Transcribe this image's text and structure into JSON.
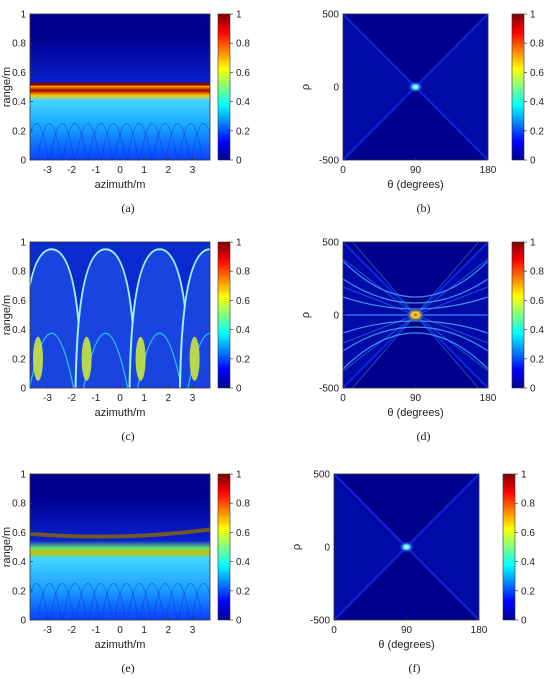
{
  "panels": [
    {
      "id": "a",
      "caption": "(a)",
      "type": "range-azimuth",
      "ylabel": "range/m",
      "xlabel": "azimuth/m",
      "xticks": [
        "-3",
        "-2",
        "-1",
        "0",
        "1",
        "2",
        "3"
      ],
      "yticks": [
        "0",
        "0.2",
        "0.4",
        "0.6",
        "0.8",
        "1"
      ],
      "cbticks": [
        "0",
        "0.2",
        "0.4",
        "0.6",
        "0.8",
        "1"
      ],
      "pattern": "band"
    },
    {
      "id": "b",
      "caption": "(b)",
      "type": "hough",
      "ylabel": "ρ",
      "xlabel": "θ (degrees)",
      "xticks": [
        "0",
        "90",
        "180"
      ],
      "yticks": [
        "-500",
        "0",
        "500"
      ],
      "cbticks": [
        "0",
        "0.2",
        "0.4",
        "0.6",
        "0.8",
        "1"
      ],
      "pattern": "point"
    },
    {
      "id": "c",
      "caption": "(c)",
      "type": "range-azimuth",
      "ylabel": "range/m",
      "xlabel": "azimuth/m",
      "xticks": [
        "-3",
        "-2",
        "-1",
        "0",
        "1",
        "2",
        "3"
      ],
      "yticks": [
        "0",
        "0.2",
        "0.4",
        "0.6",
        "0.8",
        "1"
      ],
      "cbticks": [
        "0",
        "0.2",
        "0.4",
        "0.6",
        "0.8",
        "1"
      ],
      "pattern": "arcs"
    },
    {
      "id": "d",
      "caption": "(d)",
      "type": "hough",
      "ylabel": "ρ",
      "xlabel": "θ (degrees)",
      "xticks": [
        "0",
        "90",
        "180"
      ],
      "yticks": [
        "-500",
        "0",
        "500"
      ],
      "cbticks": [
        "0",
        "0.2",
        "0.4",
        "0.6",
        "0.8",
        "1"
      ],
      "pattern": "star"
    },
    {
      "id": "e",
      "caption": "(e)",
      "type": "range-azimuth",
      "ylabel": "range/m",
      "xlabel": "azimuth/m",
      "xticks": [
        "-3",
        "-2",
        "-1",
        "0",
        "1",
        "2",
        "3"
      ],
      "yticks": [
        "0",
        "0.2",
        "0.4",
        "0.6",
        "0.8",
        "1"
      ],
      "cbticks": [
        "0",
        "0.2",
        "0.4",
        "0.6",
        "0.8",
        "1"
      ],
      "pattern": "wavyband"
    },
    {
      "id": "f",
      "caption": "(f)",
      "type": "hough",
      "ylabel": "ρ",
      "xlabel": "θ (degrees)",
      "xticks": [
        "0",
        "90",
        "180"
      ],
      "yticks": [
        "-500",
        "0",
        "500"
      ],
      "cbticks": [
        "0",
        "0.2",
        "0.4",
        "0.6",
        "0.8",
        "1"
      ],
      "pattern": "point"
    }
  ],
  "colors": {
    "dark": "#00008f",
    "mid": "#1f4fff",
    "cyan": "#33e0ff",
    "yellow": "#ffe600",
    "red": "#cc0000"
  }
}
